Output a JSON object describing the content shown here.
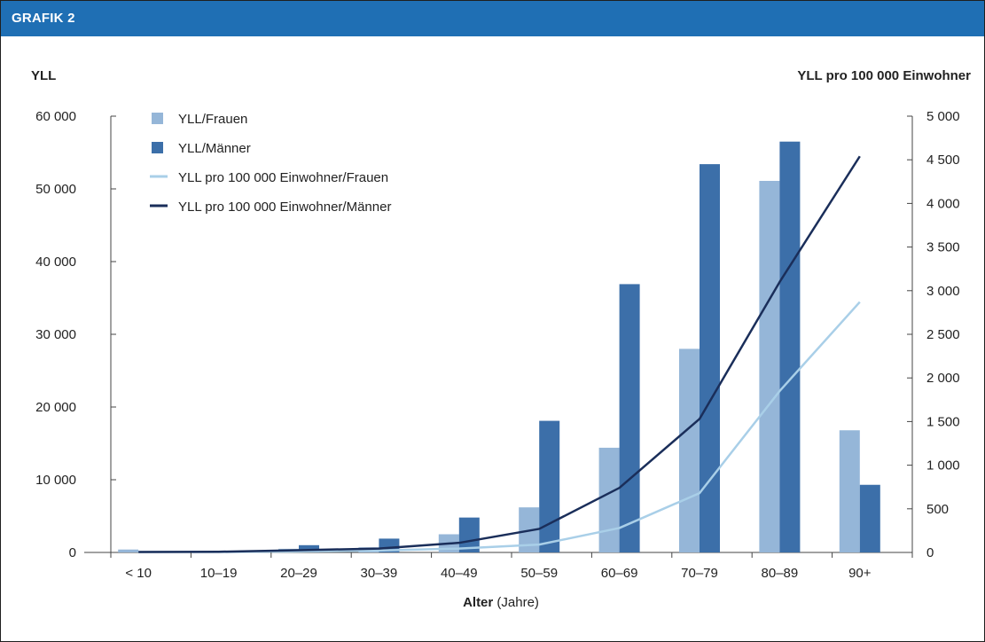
{
  "header": {
    "title": "GRAFIK 2"
  },
  "chart_data": {
    "type": "bar",
    "categories": [
      "< 10",
      "10–19",
      "20–29",
      "30–39",
      "40–49",
      "50–59",
      "60–69",
      "70–79",
      "80–89",
      "90+"
    ],
    "left_axis_label": "YLL",
    "right_axis_label": "YLL pro 100 000 Einwohner",
    "xlabel_bold": "Alter",
    "xlabel_rest": " (Jahre)",
    "ylim_left": [
      0,
      60000
    ],
    "ylim_right": [
      0,
      5000
    ],
    "left_ticks": [
      0,
      10000,
      20000,
      30000,
      40000,
      50000,
      60000
    ],
    "left_tick_labels": [
      "0",
      "10 000",
      "20 000",
      "30 000",
      "40 000",
      "50 000",
      "60 000"
    ],
    "right_ticks": [
      0,
      500,
      1000,
      1500,
      2000,
      2500,
      3000,
      3500,
      4000,
      4500,
      5000
    ],
    "right_tick_labels": [
      "0",
      "500",
      "1 000",
      "1 500",
      "2 000",
      "2 500",
      "3 000",
      "3 500",
      "4 000",
      "4 500",
      "5 000"
    ],
    "bar_series": [
      {
        "name": "YLL/Frauen",
        "color": "#95b6d8",
        "values": [
          400,
          100,
          500,
          700,
          2500,
          6200,
          14400,
          28000,
          51100,
          16800
        ]
      },
      {
        "name": "YLL/Männer",
        "color": "#3c6fa9",
        "values": [
          100,
          200,
          1000,
          1900,
          4800,
          18100,
          36900,
          53400,
          56500,
          9300
        ]
      }
    ],
    "line_series": [
      {
        "name": "YLL pro 100 000 Einwohner/Frauen",
        "color": "#a9cfe8",
        "values": [
          5,
          5,
          12,
          22,
          45,
          90,
          280,
          680,
          1850,
          2870
        ]
      },
      {
        "name": "YLL pro 100 000 Einwohner/Männer",
        "color": "#1a2e5a",
        "values": [
          5,
          8,
          25,
          45,
          110,
          270,
          740,
          1530,
          3100,
          4540
        ]
      }
    ],
    "legend_position": "top-left"
  }
}
